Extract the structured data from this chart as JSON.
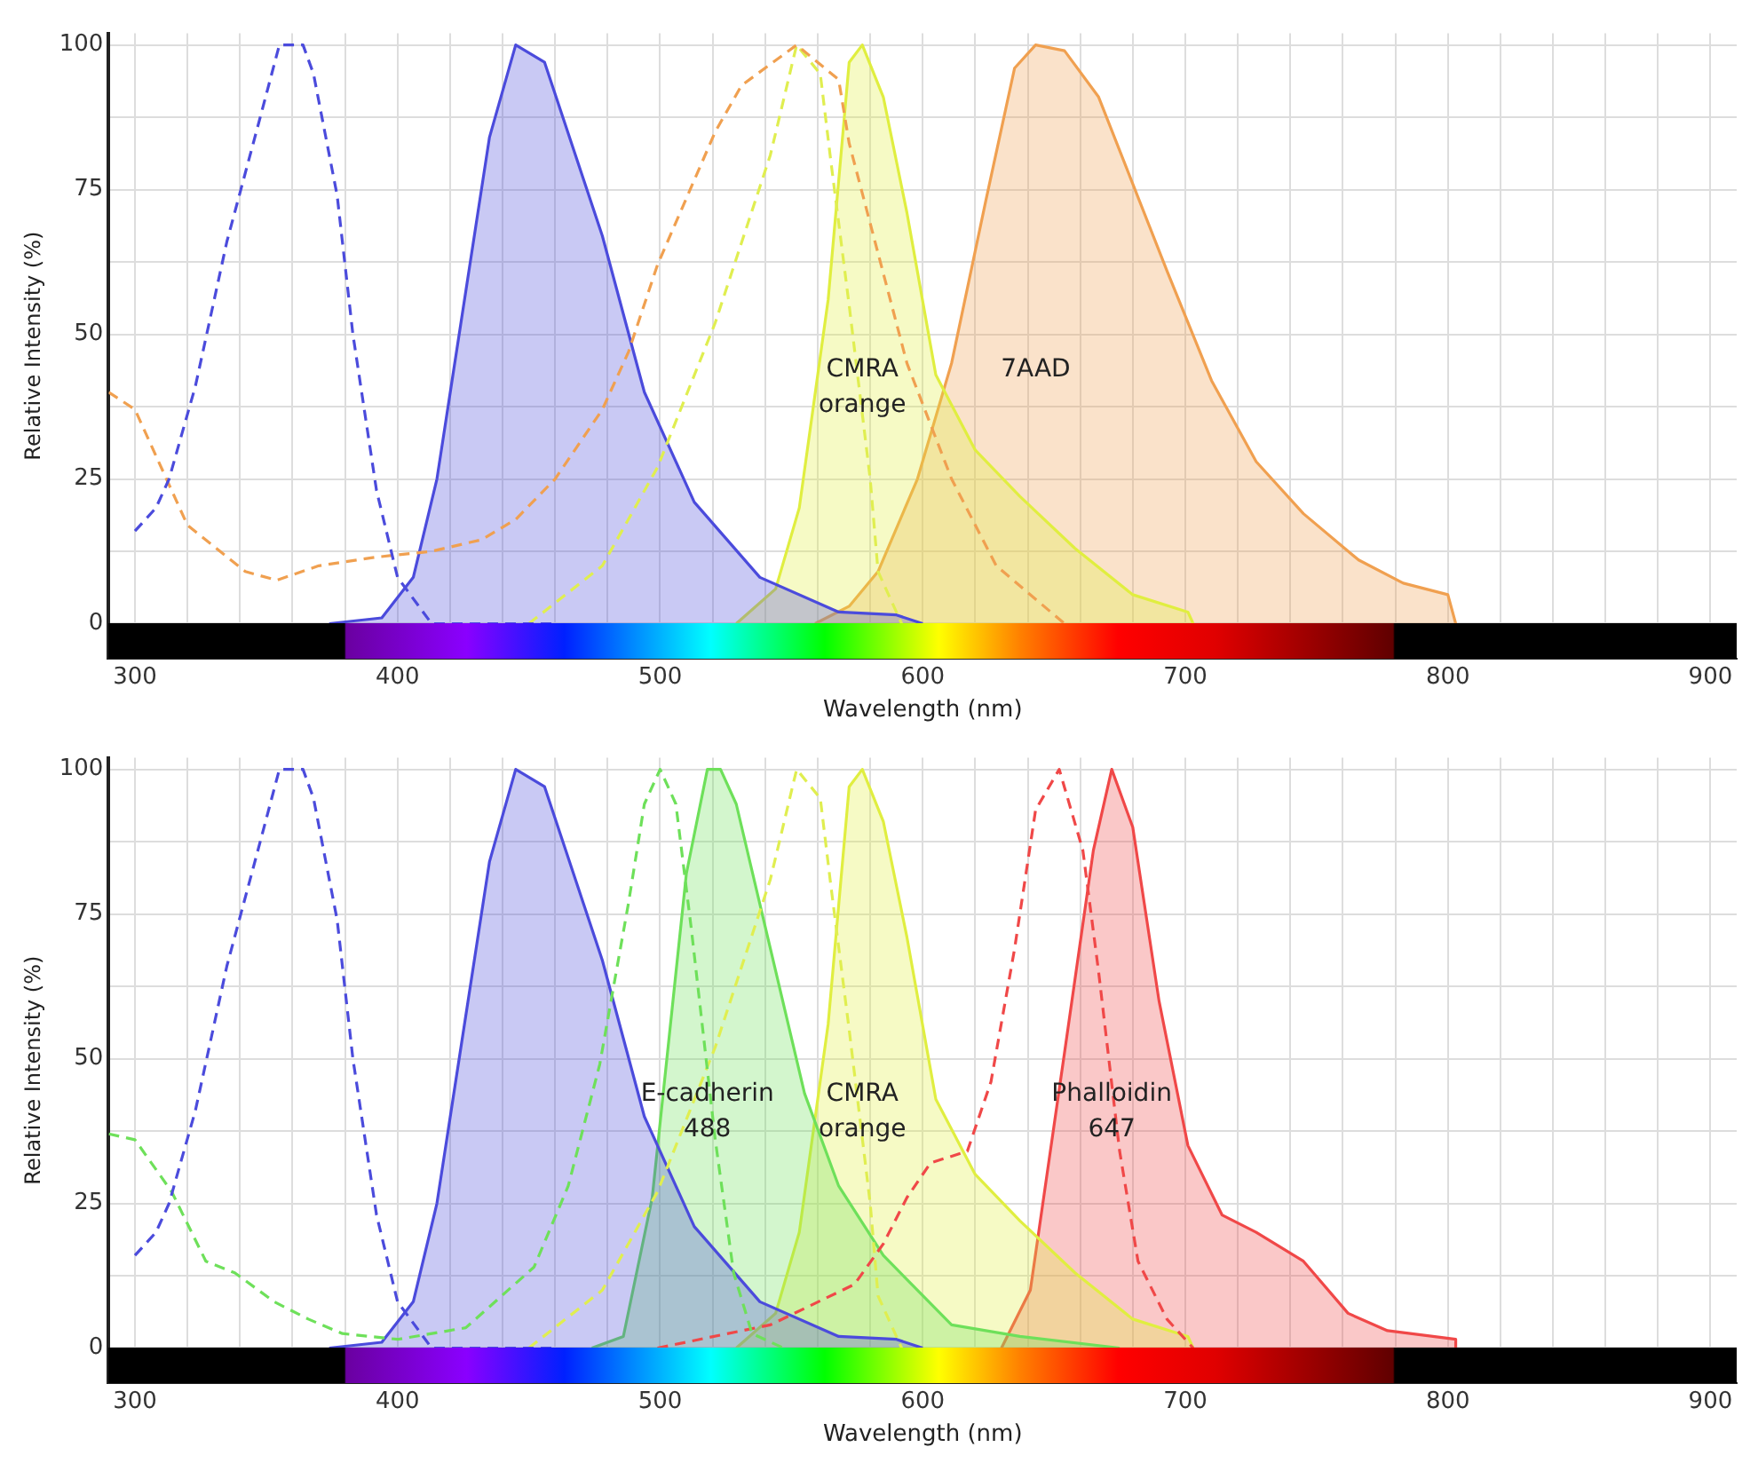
{
  "chart_data": [
    {
      "type": "line",
      "xlabel": "Wavelength (nm)",
      "ylabel": "Relative Intensity (%)",
      "xlim": [
        290,
        910
      ],
      "ylim": [
        -6,
        102
      ],
      "grid": true,
      "legend": false,
      "xticks": [
        300,
        {
          "value": 320,
          "label": null
        },
        {
          "value": 340,
          "label": null
        },
        {
          "value": 360,
          "label": null
        },
        {
          "value": 380,
          "label": null
        },
        400,
        {
          "value": 420,
          "label": null
        },
        {
          "value": 440,
          "label": null
        },
        {
          "value": 460,
          "label": null
        },
        {
          "value": 480,
          "label": null
        },
        500,
        {
          "value": 520,
          "label": null
        },
        {
          "value": 540,
          "label": null
        },
        {
          "value": 560,
          "label": null
        },
        {
          "value": 580,
          "label": null
        },
        600,
        {
          "value": 620,
          "label": null
        },
        {
          "value": 640,
          "label": null
        },
        {
          "value": 660,
          "label": null
        },
        {
          "value": 680,
          "label": null
        },
        700,
        {
          "value": 720,
          "label": null
        },
        {
          "value": 740,
          "label": null
        },
        {
          "value": 760,
          "label": null
        },
        {
          "value": 780,
          "label": null
        },
        800,
        {
          "value": 820,
          "label": null
        },
        {
          "value": 840,
          "label": null
        },
        {
          "value": 860,
          "label": null
        },
        {
          "value": 880,
          "label": null
        },
        900
      ],
      "yticks": [
        0,
        {
          "value": 12.5,
          "label": null
        },
        25,
        {
          "value": 37.5,
          "label": null
        },
        50,
        {
          "value": 62.5,
          "label": null
        },
        75,
        {
          "value": 87.5,
          "label": null
        },
        100
      ],
      "series": [
        {
          "type": "line",
          "line_style": "dashed",
          "color": "#4b4bdc",
          "x": [
            300,
            308,
            313,
            323,
            335,
            348,
            355,
            364,
            368,
            377,
            383,
            392,
            400,
            413,
            460
          ],
          "values": [
            16,
            20,
            25,
            41,
            66,
            88,
            100,
            100,
            95,
            74,
            50,
            23,
            8,
            0,
            0
          ]
        },
        {
          "type": "line",
          "line_style": "dashed",
          "color": "#f0a050",
          "x": [
            290,
            300,
            320,
            342,
            354,
            370,
            392,
            413,
            432,
            445,
            460,
            478,
            488,
            499,
            521,
            531,
            552,
            568,
            572,
            594,
            611,
            628,
            654
          ],
          "values": [
            40,
            37,
            17,
            9,
            7.5,
            10,
            11.5,
            12.5,
            14.5,
            18,
            25,
            37,
            47,
            62,
            85,
            93,
            100,
            94,
            83,
            45,
            25,
            10,
            0
          ]
        },
        {
          "type": "line",
          "line_style": "dashed",
          "color": "#e0ee50",
          "x": [
            450,
            478,
            499,
            521,
            542,
            552,
            561,
            565,
            572,
            580,
            583,
            592
          ],
          "values": [
            0,
            10,
            27,
            52,
            81,
            100,
            95,
            80,
            55,
            25,
            9,
            0
          ]
        },
        {
          "type": "area",
          "color": "#4b4bdc",
          "x": [
            374,
            394,
            406,
            415,
            435,
            445,
            456,
            478,
            494,
            513,
            538,
            568,
            590,
            600
          ],
          "values": [
            0,
            1,
            8,
            25,
            84,
            100,
            97,
            67,
            40,
            21,
            8,
            2,
            1.5,
            0
          ]
        },
        {
          "type": "area",
          "name": "CMRA orange",
          "color": "#e0ee40",
          "x": [
            529,
            544,
            553,
            564,
            572,
            577,
            585,
            594,
            605,
            620,
            637,
            658,
            680,
            701,
            703
          ],
          "values": [
            0,
            6,
            20,
            56,
            97,
            100,
            91,
            71,
            43,
            30,
            22,
            13,
            5,
            2,
            0
          ]
        },
        {
          "type": "area",
          "name": "7AAD",
          "color": "#f0a050",
          "x": [
            559,
            572,
            583,
            598,
            611,
            624,
            635,
            643,
            654,
            667,
            680,
            693,
            710,
            727,
            745,
            766,
            783,
            800,
            803
          ],
          "values": [
            0,
            3,
            9,
            25,
            45,
            73,
            96,
            100,
            99,
            91,
            76,
            61,
            42,
            28,
            19,
            11,
            7,
            5,
            0
          ]
        }
      ]
    },
    {
      "type": "line",
      "xlabel": "Wavelength (nm)",
      "ylabel": "Relative Intensity (%)",
      "xlim": [
        290,
        910
      ],
      "ylim": [
        -6,
        102
      ],
      "grid": true,
      "legend": false,
      "xticks": [
        300,
        {
          "value": 320,
          "label": null
        },
        {
          "value": 340,
          "label": null
        },
        {
          "value": 360,
          "label": null
        },
        {
          "value": 380,
          "label": null
        },
        400,
        {
          "value": 420,
          "label": null
        },
        {
          "value": 440,
          "label": null
        },
        {
          "value": 460,
          "label": null
        },
        {
          "value": 480,
          "label": null
        },
        500,
        {
          "value": 520,
          "label": null
        },
        {
          "value": 540,
          "label": null
        },
        {
          "value": 560,
          "label": null
        },
        {
          "value": 580,
          "label": null
        },
        600,
        {
          "value": 620,
          "label": null
        },
        {
          "value": 640,
          "label": null
        },
        {
          "value": 660,
          "label": null
        },
        {
          "value": 680,
          "label": null
        },
        700,
        {
          "value": 720,
          "label": null
        },
        {
          "value": 740,
          "label": null
        },
        {
          "value": 760,
          "label": null
        },
        {
          "value": 780,
          "label": null
        },
        800,
        {
          "value": 820,
          "label": null
        },
        {
          "value": 840,
          "label": null
        },
        {
          "value": 860,
          "label": null
        },
        {
          "value": 880,
          "label": null
        },
        900
      ],
      "yticks": [
        0,
        {
          "value": 12.5,
          "label": null
        },
        25,
        {
          "value": 37.5,
          "label": null
        },
        50,
        {
          "value": 62.5,
          "label": null
        },
        75,
        {
          "value": 87.5,
          "label": null
        },
        100
      ],
      "series": [
        {
          "type": "line",
          "line_style": "dashed",
          "color": "#4b4bdc",
          "x": [
            300,
            308,
            313,
            323,
            335,
            348,
            355,
            364,
            368,
            377,
            383,
            392,
            400,
            413,
            460
          ],
          "values": [
            16,
            20,
            25,
            41,
            66,
            88,
            100,
            100,
            95,
            74,
            50,
            23,
            8,
            0,
            0
          ]
        },
        {
          "type": "line",
          "line_style": "dashed",
          "color": "#6ee05a",
          "x": [
            290,
            300,
            314,
            327,
            338,
            353,
            366,
            379,
            400,
            426,
            452,
            465,
            477,
            488,
            494,
            500,
            506,
            512,
            521,
            528,
            535,
            547
          ],
          "values": [
            37,
            36,
            27,
            15,
            13,
            8,
            5,
            2.5,
            1.5,
            3.5,
            14,
            28,
            49,
            77,
            94,
            100,
            94,
            72,
            36,
            13,
            2.5,
            0
          ]
        },
        {
          "type": "line",
          "line_style": "dashed",
          "color": "#e0ee50",
          "x": [
            450,
            478,
            499,
            521,
            542,
            552,
            561,
            565,
            572,
            580,
            583,
            592
          ],
          "values": [
            0,
            10,
            27,
            52,
            81,
            100,
            95,
            80,
            55,
            25,
            9,
            0
          ]
        },
        {
          "type": "line",
          "line_style": "dashed",
          "color": "#f04848",
          "x": [
            499,
            542,
            574,
            585,
            594,
            603,
            617,
            626,
            635,
            643,
            652,
            661,
            667,
            675,
            682,
            693,
            703
          ],
          "values": [
            0,
            4,
            11,
            18,
            26,
            32,
            34,
            46,
            69,
            93,
            100,
            86,
            65,
            34,
            15,
            5,
            0
          ]
        },
        {
          "type": "area",
          "color": "#4b4bdc",
          "x": [
            374,
            394,
            406,
            415,
            435,
            445,
            456,
            478,
            494,
            513,
            538,
            568,
            590,
            600
          ],
          "values": [
            0,
            1,
            8,
            25,
            84,
            100,
            97,
            67,
            40,
            21,
            8,
            2,
            1.5,
            0
          ]
        },
        {
          "type": "area",
          "name": "E-cadherin 488",
          "color": "#6ee05a",
          "x": [
            474,
            486,
            497,
            510,
            518,
            523,
            529,
            542,
            555,
            568,
            585,
            611,
            637,
            675
          ],
          "values": [
            0,
            2,
            26,
            82,
            100,
            100,
            94,
            69,
            44,
            28,
            16,
            4,
            2,
            0
          ]
        },
        {
          "type": "area",
          "name": "CMRA orange",
          "color": "#e0ee40",
          "x": [
            529,
            544,
            553,
            564,
            572,
            577,
            585,
            594,
            605,
            620,
            637,
            658,
            680,
            701,
            703
          ],
          "values": [
            0,
            6,
            20,
            56,
            97,
            100,
            91,
            71,
            43,
            30,
            22,
            13,
            5,
            2,
            0
          ]
        },
        {
          "type": "area",
          "name": "Phalloidin 647",
          "color": "#f04848",
          "x": [
            630,
            641,
            654,
            665,
            672,
            680,
            690,
            701,
            714,
            727,
            745,
            762,
            777,
            803,
            803
          ],
          "values": [
            0,
            10,
            51,
            86,
            100,
            90,
            60,
            35,
            23,
            20,
            15,
            6,
            3,
            1.5,
            0
          ]
        }
      ]
    }
  ]
}
